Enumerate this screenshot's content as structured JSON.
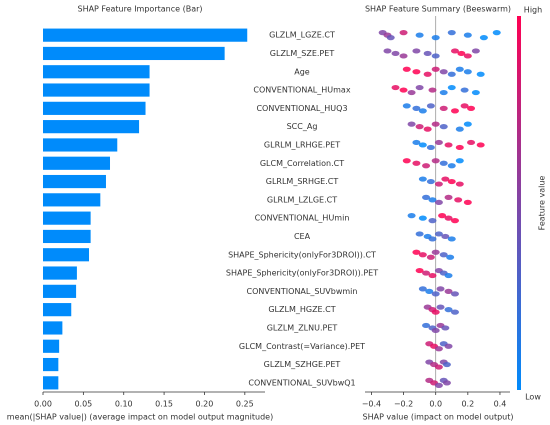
{
  "chart_data": [
    {
      "type": "barh",
      "title": "SHAP Feature Importance (Bar)",
      "xlabel": "mean(|SHAP value|) (average impact on model output magnitude)",
      "categories": [
        "GLZLM_LGZE.CT",
        "GLZLM_SZE.PET",
        "Age",
        "CONVENTIONAL_HUmax",
        "CONVENTIONAL_HUQ3",
        "SCC_Ag",
        "GLRLM_LRHGE.PET",
        "GLCM_Correlation.CT",
        "GLRLM_SRHGE.CT",
        "GLRLM_LZLGE.CT",
        "CONVENTIONAL_HUmin",
        "CEA",
        "SHAPE_Sphericity(onlyFor3DROI)).CT",
        "SHAPE_Sphericity(onlyFor3DROI)).PET",
        "CONVENTIONAL_SUVbwmin",
        "GLZLM_HGZE.CT",
        "GLZLM_ZLNU.PET",
        "GLCM_Contrast(=Variance).PET",
        "GLZLM_SZHGE.PET",
        "CONVENTIONAL_SUVbwQ1"
      ],
      "values": [
        0.253,
        0.225,
        0.132,
        0.132,
        0.127,
        0.119,
        0.092,
        0.083,
        0.078,
        0.071,
        0.059,
        0.059,
        0.057,
        0.042,
        0.041,
        0.035,
        0.024,
        0.02,
        0.019,
        0.019
      ],
      "color": "#008bfb",
      "xlim": [
        0,
        0.275
      ],
      "xticks": [
        {
          "value": 0,
          "label": "0.00"
        },
        {
          "value": 0.05,
          "label": "0.05"
        },
        {
          "value": 0.1,
          "label": "0.10"
        },
        {
          "value": 0.15,
          "label": "0.15"
        },
        {
          "value": 0.2,
          "label": "0.20"
        },
        {
          "value": 0.25,
          "label": "0.25"
        }
      ]
    },
    {
      "type": "beeswarm",
      "title": "SHAP Feature Summary (Beeswarm)",
      "xlabel": "SHAP value (impact on model output)",
      "color_label": "Feature value",
      "color_high": "High",
      "color_low": "Low",
      "low_color": "#008bfb",
      "high_color": "#ff0052",
      "xlim": [
        -0.44,
        0.4625
      ],
      "xticks": [
        {
          "value": -0.4,
          "label": "−0.4"
        },
        {
          "value": -0.2,
          "label": "−0.2"
        },
        {
          "value": 0,
          "label": "0.0"
        },
        {
          "value": 0.2,
          "label": "0.2"
        },
        {
          "value": 0.4,
          "label": "0.4"
        }
      ],
      "series": [
        {
          "shap": [
            -0.33,
            -0.3,
            -0.28,
            -0.2,
            -0.1,
            0.0,
            0.1,
            0.2,
            0.3,
            0.38
          ],
          "feature_value": [
            0.5,
            0.6,
            0.4,
            0.8,
            0.1,
            0.1,
            0.2,
            0.1,
            0.0,
            0.0
          ]
        },
        {
          "shap": [
            -0.3,
            -0.25,
            -0.2,
            -0.12,
            -0.05,
            0.0,
            0.12,
            0.16,
            0.2,
            0.25
          ],
          "feature_value": [
            0.5,
            0.5,
            0.6,
            0.5,
            0.4,
            0.3,
            0.9,
            1,
            0.9,
            0.5
          ]
        },
        {
          "shap": [
            -0.18,
            -0.12,
            -0.05,
            0.0,
            0.05,
            0.1,
            0.15,
            0.2,
            0.28
          ],
          "feature_value": [
            1,
            1,
            0.9,
            0.8,
            0.5,
            0.2,
            0.1,
            0.1,
            0.0
          ]
        },
        {
          "shap": [
            -0.25,
            -0.2,
            -0.15,
            -0.1,
            -0.02,
            0.05,
            0.1,
            0.18,
            0.25
          ],
          "feature_value": [
            0.9,
            1,
            0.6,
            0.5,
            0.7,
            0.1,
            0.0,
            0.2,
            0
          ]
        },
        {
          "shap": [
            -0.18,
            -0.12,
            -0.08,
            -0.03,
            0.05,
            0.12,
            0.18,
            0.22
          ],
          "feature_value": [
            0.1,
            0.2,
            0.1,
            0.3,
            0.8,
            1,
            0.9,
            1
          ]
        },
        {
          "shap": [
            -0.15,
            -0.1,
            -0.05,
            0.0,
            0.05,
            0.15,
            0.2
          ],
          "feature_value": [
            0.5,
            0.8,
            0.9,
            0.7,
            0.3,
            0.1,
            0
          ]
        },
        {
          "shap": [
            -0.12,
            -0.08,
            -0.03,
            0.02,
            0.08,
            0.15,
            0.22,
            0.28
          ],
          "feature_value": [
            0.1,
            0.0,
            0.2,
            0.6,
            0.9,
            1,
            0.9,
            1
          ]
        },
        {
          "shap": [
            -0.18,
            -0.12,
            -0.06,
            0.0,
            0.05,
            0.1,
            0.15
          ],
          "feature_value": [
            1,
            0.9,
            0.8,
            0.7,
            0.2,
            0.1,
            0
          ]
        },
        {
          "shap": [
            -0.08,
            -0.03,
            0.02,
            0.06,
            0.1,
            0.15
          ],
          "feature_value": [
            0.1,
            0.2,
            0.8,
            0.9,
            1,
            0.9
          ]
        },
        {
          "shap": [
            -0.06,
            -0.02,
            0.02,
            0.08,
            0.14,
            0.2
          ],
          "feature_value": [
            0.2,
            0.1,
            0.5,
            0.7,
            0.9,
            1
          ]
        },
        {
          "shap": [
            -0.15,
            -0.08,
            -0.02,
            0.04,
            0.08,
            0.12
          ],
          "feature_value": [
            0.1,
            0.0,
            0.3,
            1,
            0.9,
            1
          ]
        },
        {
          "shap": [
            -0.1,
            -0.05,
            -0.02,
            0.02,
            0.06,
            0.1
          ],
          "feature_value": [
            0.2,
            0.1,
            0.2,
            0.3,
            0.4,
            0.1
          ]
        },
        {
          "shap": [
            -0.12,
            -0.08,
            -0.03,
            0.0,
            0.05,
            0.09
          ],
          "feature_value": [
            1,
            0.9,
            0.8,
            0.6,
            0.3,
            0.1
          ]
        },
        {
          "shap": [
            -0.1,
            -0.06,
            -0.02,
            0.02,
            0.05,
            0.08
          ],
          "feature_value": [
            1,
            0.8,
            0.9,
            0.5,
            0.3,
            0.1
          ]
        },
        {
          "shap": [
            -0.08,
            -0.04,
            0.0,
            0.03,
            0.08,
            0.12
          ],
          "feature_value": [
            0.2,
            0.1,
            0.3,
            0.5,
            0.6,
            0.4
          ]
        },
        {
          "shap": [
            -0.05,
            -0.02,
            0.0,
            0.03,
            0.08,
            0.12
          ],
          "feature_value": [
            0.6,
            0.8,
            0.9,
            0.4,
            0.2,
            0.3
          ]
        },
        {
          "shap": [
            -0.06,
            -0.02,
            0.0,
            0.03,
            0.06
          ],
          "feature_value": [
            0.2,
            0.3,
            0.5,
            0.6,
            0.4
          ]
        },
        {
          "shap": [
            -0.04,
            -0.01,
            0.02,
            0.05,
            0.08
          ],
          "feature_value": [
            0.8,
            0.9,
            0.6,
            0.3,
            0.5
          ]
        },
        {
          "shap": [
            -0.04,
            -0.01,
            0.02,
            0.05,
            0.07
          ],
          "feature_value": [
            0.5,
            0.7,
            0.8,
            0.5,
            0.3
          ]
        },
        {
          "shap": [
            -0.04,
            -0.01,
            0.02,
            0.05,
            0.07
          ],
          "feature_value": [
            0.7,
            0.8,
            0.5,
            0.4,
            0.5
          ]
        }
      ]
    }
  ]
}
